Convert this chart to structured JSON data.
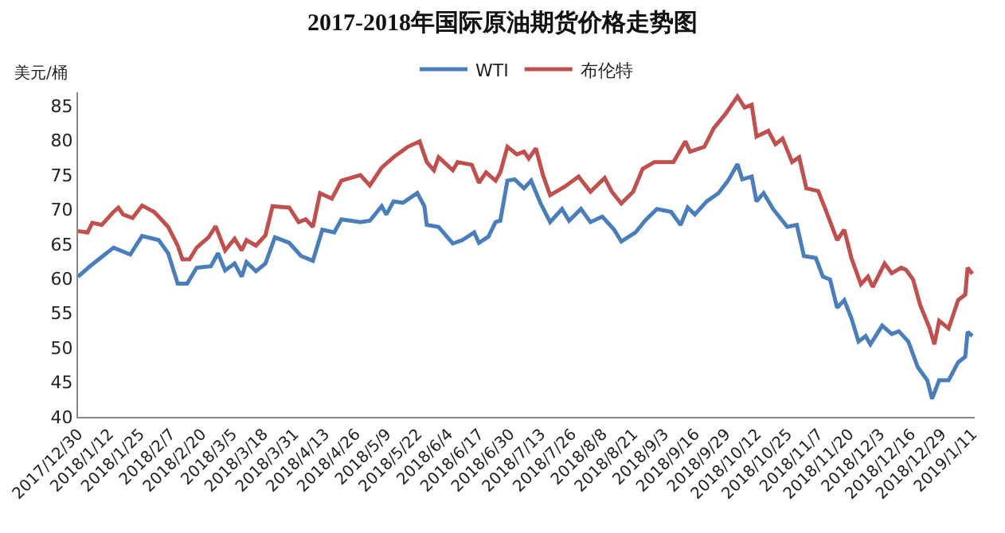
{
  "chart_data": {
    "type": "line",
    "title": "2017-2018年国际原油期货价格走势图",
    "ylabel": "美元/桶",
    "xlim": [
      "2017-12-30",
      "2019-01-12"
    ],
    "ylim": [
      40,
      87
    ],
    "yticks": [
      40,
      45,
      50,
      55,
      60,
      65,
      70,
      75,
      80,
      85
    ],
    "xticks": [
      {
        "value": "2017-12-30",
        "label": "2017/12/30"
      },
      {
        "value": "2018-01-12",
        "label": "2018/1/12"
      },
      {
        "value": "2018-01-25",
        "label": "2018/1/25"
      },
      {
        "value": "2018-02-07",
        "label": "2018/2/7"
      },
      {
        "value": "2018-02-20",
        "label": "2018/2/20"
      },
      {
        "value": "2018-03-05",
        "label": "2018/3/5"
      },
      {
        "value": "2018-03-18",
        "label": "2018/3/18"
      },
      {
        "value": "2018-03-31",
        "label": "2018/3/31"
      },
      {
        "value": "2018-04-13",
        "label": "2018/4/13"
      },
      {
        "value": "2018-04-26",
        "label": "2018/4/26"
      },
      {
        "value": "2018-05-09",
        "label": "2018/5/9"
      },
      {
        "value": "2018-05-22",
        "label": "2018/5/22"
      },
      {
        "value": "2018-06-04",
        "label": "2018/6/4"
      },
      {
        "value": "2018-06-17",
        "label": "2018/6/17"
      },
      {
        "value": "2018-06-30",
        "label": "2018/6/30"
      },
      {
        "value": "2018-07-13",
        "label": "2018/7/13"
      },
      {
        "value": "2018-07-26",
        "label": "2018/7/26"
      },
      {
        "value": "2018-08-08",
        "label": "2018/8/8"
      },
      {
        "value": "2018-08-21",
        "label": "2018/8/21"
      },
      {
        "value": "2018-09-03",
        "label": "2018/9/3"
      },
      {
        "value": "2018-09-16",
        "label": "2018/9/16"
      },
      {
        "value": "2018-09-29",
        "label": "2018/9/29"
      },
      {
        "value": "2018-10-12",
        "label": "2018/10/12"
      },
      {
        "value": "2018-10-25",
        "label": "2018/10/25"
      },
      {
        "value": "2018-11-07",
        "label": "2018/11/7"
      },
      {
        "value": "2018-11-20",
        "label": "2018/11/20"
      },
      {
        "value": "2018-12-03",
        "label": "2018/12/3"
      },
      {
        "value": "2018-12-16",
        "label": "2018/12/16"
      },
      {
        "value": "2018-12-29",
        "label": "2018/12/29"
      },
      {
        "value": "2019-01-11",
        "label": "2019/1/11"
      }
    ],
    "legend": "top",
    "marker": "none",
    "line_style": "solid",
    "series": [
      {
        "name": "WTI",
        "color": "#4a7ebb",
        "x": [
          "2017-12-30",
          "2018-01-04",
          "2018-01-11",
          "2018-01-14",
          "2018-01-21",
          "2018-01-26",
          "2018-02-02",
          "2018-02-06",
          "2018-02-10",
          "2018-02-14",
          "2018-02-18",
          "2018-02-24",
          "2018-02-27",
          "2018-03-02",
          "2018-03-06",
          "2018-03-09",
          "2018-03-11",
          "2018-03-15",
          "2018-03-19",
          "2018-03-23",
          "2018-03-29",
          "2018-04-03",
          "2018-04-08",
          "2018-04-12",
          "2018-04-17",
          "2018-04-20",
          "2018-04-28",
          "2018-05-02",
          "2018-05-07",
          "2018-05-09",
          "2018-05-12",
          "2018-05-16",
          "2018-05-22",
          "2018-05-25",
          "2018-05-26",
          "2018-05-31",
          "2018-06-06",
          "2018-06-10",
          "2018-06-15",
          "2018-06-17",
          "2018-06-21",
          "2018-06-24",
          "2018-06-26",
          "2018-06-29",
          "2018-07-02",
          "2018-07-06",
          "2018-07-09",
          "2018-07-13",
          "2018-07-17",
          "2018-07-22",
          "2018-07-25",
          "2018-07-30",
          "2018-08-03",
          "2018-08-08",
          "2018-08-13",
          "2018-08-16",
          "2018-08-22",
          "2018-08-26",
          "2018-08-31",
          "2018-09-06",
          "2018-09-10",
          "2018-09-13",
          "2018-09-16",
          "2018-09-21",
          "2018-09-26",
          "2018-09-30",
          "2018-10-04",
          "2018-10-06",
          "2018-10-10",
          "2018-10-12",
          "2018-10-15",
          "2018-10-19",
          "2018-10-22",
          "2018-10-25",
          "2018-10-29",
          "2018-11-01",
          "2018-11-06",
          "2018-11-09",
          "2018-11-12",
          "2018-11-15",
          "2018-11-18",
          "2018-11-21",
          "2018-11-24",
          "2018-11-27",
          "2018-11-29",
          "2018-12-04",
          "2018-12-08",
          "2018-12-11",
          "2018-12-15",
          "2018-12-19",
          "2018-12-23",
          "2018-12-25",
          "2018-12-28",
          "2019-01-01",
          "2019-01-05",
          "2019-01-08",
          "2019-01-09",
          "2019-01-11"
        ],
        "values": [
          60.3,
          61.8,
          63.7,
          64.5,
          63.5,
          66.2,
          65.6,
          63.7,
          59.3,
          59.3,
          61.6,
          61.8,
          63.7,
          61.2,
          62.2,
          60.3,
          62.4,
          61.1,
          62.2,
          66.0,
          65.2,
          63.3,
          62.6,
          67.1,
          66.7,
          68.6,
          68.2,
          68.4,
          70.5,
          69.3,
          71.2,
          71.0,
          72.4,
          70.5,
          67.8,
          67.5,
          65.1,
          65.6,
          66.7,
          65.2,
          66.1,
          68.2,
          68.4,
          74.2,
          74.4,
          73.1,
          74.2,
          70.9,
          68.2,
          70.1,
          68.4,
          70.1,
          68.2,
          69.0,
          67.1,
          65.4,
          66.7,
          68.4,
          70.1,
          69.7,
          67.8,
          70.3,
          69.3,
          71.2,
          72.4,
          74.2,
          76.6,
          74.4,
          74.8,
          71.2,
          72.4,
          70.1,
          68.8,
          67.5,
          67.8,
          63.3,
          63.0,
          60.3,
          59.9,
          55.8,
          56.9,
          54.3,
          50.9,
          51.7,
          50.5,
          53.2,
          52.0,
          52.4,
          50.9,
          47.2,
          45.3,
          42.6,
          45.3,
          45.3,
          47.9,
          48.7,
          52.3,
          51.7
        ]
      },
      {
        "name": "布伦特",
        "color": "#c0504d",
        "x": [
          "2017-12-30",
          "2018-01-03",
          "2018-01-05",
          "2018-01-09",
          "2018-01-14",
          "2018-01-16",
          "2018-01-18",
          "2018-01-22",
          "2018-01-26",
          "2018-01-31",
          "2018-02-02",
          "2018-02-06",
          "2018-02-10",
          "2018-02-12",
          "2018-02-15",
          "2018-02-18",
          "2018-02-23",
          "2018-02-26",
          "2018-03-02",
          "2018-03-06",
          "2018-03-09",
          "2018-03-11",
          "2018-03-15",
          "2018-03-19",
          "2018-03-22",
          "2018-03-29",
          "2018-04-02",
          "2018-04-05",
          "2018-04-08",
          "2018-04-11",
          "2018-04-16",
          "2018-04-20",
          "2018-04-28",
          "2018-05-02",
          "2018-05-07",
          "2018-05-12",
          "2018-05-18",
          "2018-05-23",
          "2018-05-26",
          "2018-05-29",
          "2018-05-31",
          "2018-06-06",
          "2018-06-08",
          "2018-06-14",
          "2018-06-17",
          "2018-06-20",
          "2018-06-24",
          "2018-06-26",
          "2018-06-29",
          "2018-07-03",
          "2018-07-06",
          "2018-07-08",
          "2018-07-11",
          "2018-07-14",
          "2018-07-17",
          "2018-07-23",
          "2018-07-29",
          "2018-08-03",
          "2018-08-09",
          "2018-08-12",
          "2018-08-16",
          "2018-08-21",
          "2018-08-25",
          "2018-08-30",
          "2018-09-07",
          "2018-09-12",
          "2018-09-14",
          "2018-09-20",
          "2018-09-24",
          "2018-09-29",
          "2018-10-04",
          "2018-10-07",
          "2018-10-10",
          "2018-10-12",
          "2018-10-17",
          "2018-10-20",
          "2018-10-23",
          "2018-10-27",
          "2018-10-30",
          "2018-11-02",
          "2018-11-07",
          "2018-11-10",
          "2018-11-15",
          "2018-11-18",
          "2018-11-21",
          "2018-11-25",
          "2018-11-28",
          "2018-11-30",
          "2018-12-05",
          "2018-12-08",
          "2018-12-12",
          "2018-12-14",
          "2018-12-17",
          "2018-12-20",
          "2018-12-24",
          "2018-12-26",
          "2018-12-28",
          "2019-01-01",
          "2019-01-05",
          "2019-01-08",
          "2019-01-09",
          "2019-01-11"
        ],
        "values": [
          66.9,
          66.7,
          68.1,
          67.8,
          69.7,
          70.3,
          69.3,
          68.8,
          70.6,
          69.7,
          69.0,
          67.5,
          64.8,
          62.8,
          62.8,
          64.5,
          66.0,
          67.6,
          64.1,
          65.8,
          64.1,
          65.6,
          64.8,
          66.3,
          70.5,
          70.3,
          68.2,
          68.6,
          67.5,
          72.4,
          71.6,
          74.2,
          75.0,
          73.5,
          76.1,
          77.6,
          79.1,
          79.9,
          76.9,
          75.7,
          77.6,
          75.7,
          76.9,
          76.5,
          73.9,
          75.4,
          74.2,
          75.4,
          79.1,
          78.0,
          78.4,
          77.4,
          78.9,
          75.0,
          72.1,
          73.3,
          74.8,
          72.6,
          74.6,
          72.6,
          70.9,
          72.6,
          75.9,
          76.9,
          76.9,
          79.9,
          78.4,
          79.1,
          81.8,
          83.9,
          86.4,
          84.8,
          85.2,
          80.6,
          81.4,
          79.5,
          80.3,
          76.9,
          77.6,
          73.1,
          72.7,
          70.1,
          65.6,
          67.1,
          63.0,
          59.2,
          60.3,
          58.8,
          62.2,
          60.8,
          61.6,
          61.3,
          59.9,
          56.2,
          52.8,
          50.5,
          53.9,
          52.8,
          56.9,
          57.7,
          61.6,
          60.7
        ]
      }
    ]
  }
}
